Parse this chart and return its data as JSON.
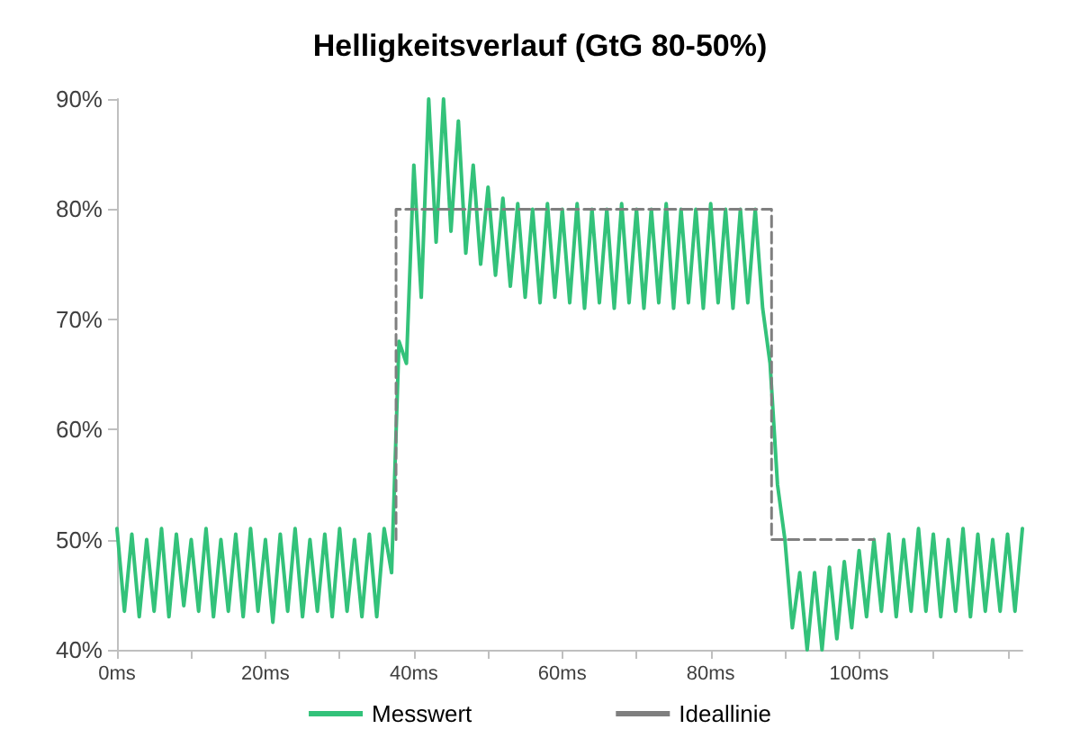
{
  "chart_data": {
    "type": "line",
    "title": "Helligkeitsverlauf (GtG 80-50%)",
    "xlim": [
      0,
      122
    ],
    "ylim": [
      40,
      90
    ],
    "xticks": [
      {
        "value": 0,
        "label": "0ms"
      },
      {
        "value": 10,
        "label": null
      },
      {
        "value": 20,
        "label": "20ms"
      },
      {
        "value": 30,
        "label": null
      },
      {
        "value": 40,
        "label": "40ms"
      },
      {
        "value": 50,
        "label": null
      },
      {
        "value": 60,
        "label": "60ms"
      },
      {
        "value": 70,
        "label": null
      },
      {
        "value": 80,
        "label": "80ms"
      },
      {
        "value": 90,
        "label": null
      },
      {
        "value": 100,
        "label": "100ms"
      },
      {
        "value": 110,
        "label": null
      },
      {
        "value": 120,
        "label": null
      }
    ],
    "yticks": [
      {
        "value": 40,
        "label": "40%"
      },
      {
        "value": 50,
        "label": "50%"
      },
      {
        "value": 60,
        "label": "60%"
      },
      {
        "value": 70,
        "label": "70%"
      },
      {
        "value": 80,
        "label": "80%"
      },
      {
        "value": 90,
        "label": "90%"
      }
    ],
    "legend": "bottom",
    "marker": "none",
    "series": [
      {
        "name": "Messwert",
        "color": "#33c27a",
        "line_style": "solid",
        "x": [
          0,
          1,
          2,
          3,
          4,
          5,
          6,
          7,
          8,
          9,
          10,
          11,
          12,
          13,
          14,
          15,
          16,
          17,
          18,
          19,
          20,
          21,
          22,
          23,
          24,
          25,
          26,
          27,
          28,
          29,
          30,
          31,
          32,
          33,
          34,
          35,
          36,
          37,
          38,
          39,
          40,
          41,
          42,
          43,
          44,
          45,
          46,
          47,
          48,
          49,
          50,
          51,
          52,
          53,
          54,
          55,
          56,
          57,
          58,
          59,
          60,
          61,
          62,
          63,
          64,
          65,
          66,
          67,
          68,
          69,
          70,
          71,
          72,
          73,
          74,
          75,
          76,
          77,
          78,
          79,
          80,
          81,
          82,
          83,
          84,
          85,
          86,
          87,
          88,
          89,
          90,
          91,
          92,
          93,
          94,
          95,
          96,
          97,
          98,
          99,
          100,
          101,
          102,
          103,
          104,
          105,
          106,
          107,
          108,
          109,
          110,
          111,
          112,
          113,
          114,
          115,
          116,
          117,
          118,
          119,
          120,
          121,
          122
        ],
        "values": [
          51,
          43.5,
          50.5,
          43,
          50,
          43.5,
          51,
          43,
          50.5,
          44,
          50,
          43.5,
          51,
          43,
          50,
          43.5,
          50.5,
          43,
          51,
          43.5,
          50,
          42.5,
          50.5,
          43.5,
          51,
          43,
          50,
          43.5,
          50.5,
          43,
          51,
          43.5,
          50,
          43,
          50.5,
          43,
          51,
          47,
          68,
          66,
          84,
          72,
          90,
          77,
          90,
          78,
          88,
          76,
          84,
          75,
          82,
          74,
          81,
          73,
          80.5,
          72,
          80,
          71.5,
          80.5,
          72,
          80,
          71.5,
          80.5,
          71,
          80,
          71.5,
          80,
          71,
          80.5,
          71.5,
          80,
          71,
          80,
          71.5,
          80.5,
          71,
          80,
          71.5,
          80,
          71,
          80.5,
          71.5,
          80,
          71,
          80,
          71.5,
          80,
          71,
          66,
          55,
          50,
          42,
          47,
          40,
          47,
          40,
          47.5,
          41,
          48,
          42,
          49,
          43,
          50,
          43.5,
          50.5,
          43,
          50,
          43.5,
          51,
          43.5,
          50.5,
          43,
          50,
          43.5,
          51,
          43,
          50.5,
          43.5,
          50,
          43.5,
          50.5,
          43.5,
          51
        ]
      },
      {
        "name": "Ideallinie",
        "color": "#7f7f7f",
        "line_style": "dashed",
        "x": [
          37.6,
          37.6,
          88.2,
          88.2,
          102
        ],
        "values": [
          50,
          80,
          80,
          50,
          50
        ]
      }
    ]
  }
}
